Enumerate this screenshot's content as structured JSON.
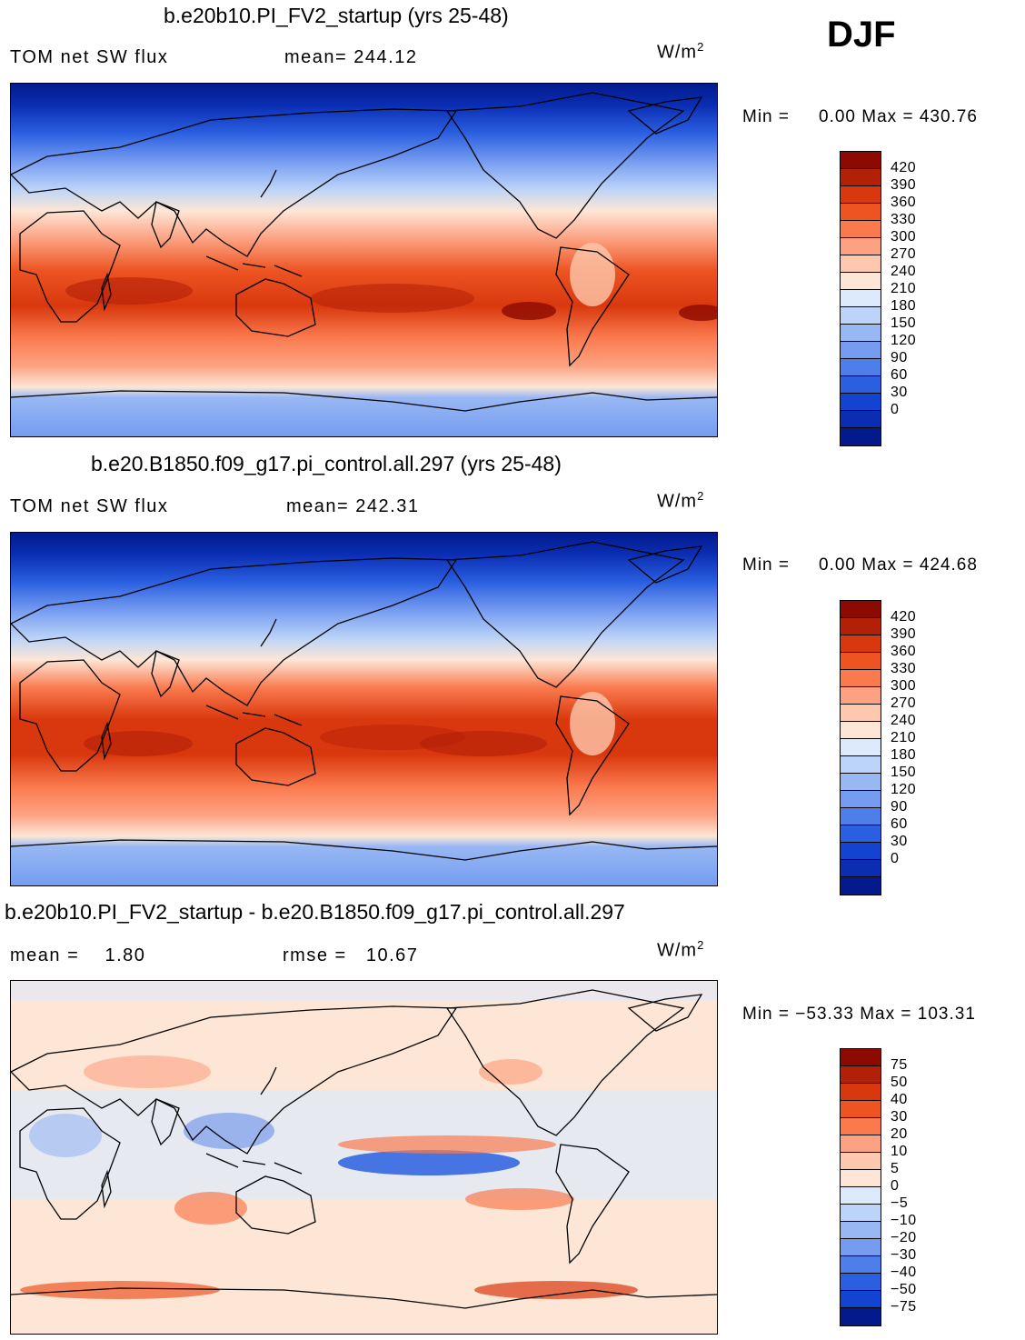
{
  "season_label": "DJF",
  "colorbar_colors": {
    "absolute": [
      "#8c0a00",
      "#b32008",
      "#d9380e",
      "#ed5422",
      "#fa7a4e",
      "#fca282",
      "#fdc8ad",
      "#fde6d6",
      "#ddeafb",
      "#bcd4f8",
      "#98b8f4",
      "#759cf0",
      "#4d7ee9",
      "#2a5fe0",
      "#1244d1",
      "#0a2db2",
      "#031a8c"
    ],
    "difference": [
      "#8c0a00",
      "#b32008",
      "#d9380e",
      "#ed5422",
      "#fa7a4e",
      "#fca282",
      "#fdc8ad",
      "#fde6d6",
      "#ddeafb",
      "#bcd4f8",
      "#98b8f4",
      "#759cf0",
      "#4d7ee9",
      "#2a5fe0",
      "#1244d1",
      "#031a8c"
    ]
  },
  "panels": [
    {
      "title": "b.e20b10.PI_FV2_startup (yrs 25-48)",
      "variable": "TOM net SW flux",
      "stat1": "mean= 244.12",
      "stat2": "",
      "units_base": "W/m",
      "units_exp": "2",
      "min_label": "Min =",
      "min_value": "0.00",
      "max_label": "Max =",
      "max_value": "430.76",
      "colorbar_levels": [
        "420",
        "390",
        "360",
        "330",
        "300",
        "270",
        "240",
        "210",
        "180",
        "150",
        "120",
        "90",
        "60",
        "30",
        "0"
      ]
    },
    {
      "title": "b.e20.B1850.f09_g17.pi_control.all.297 (yrs 25-48)",
      "variable": "TOM net SW flux",
      "stat1": "mean= 242.31",
      "stat2": "",
      "units_base": "W/m",
      "units_exp": "2",
      "min_label": "Min =",
      "min_value": "0.00",
      "max_label": "Max =",
      "max_value": "424.68",
      "colorbar_levels": [
        "420",
        "390",
        "360",
        "330",
        "300",
        "270",
        "240",
        "210",
        "180",
        "150",
        "120",
        "90",
        "60",
        "30",
        "0"
      ]
    },
    {
      "title": "b.e20b10.PI_FV2_startup - b.e20.B1850.f09_g17.pi_control.all.297",
      "variable": "",
      "stat1": "mean =    1.80",
      "stat2": "rmse =   10.67",
      "units_base": "W/m",
      "units_exp": "2",
      "min_label": "Min =",
      "min_value": "−53.33",
      "max_label": "Max =",
      "max_value": "103.31",
      "colorbar_levels": [
        "75",
        "50",
        "40",
        "30",
        "20",
        "10",
        "5",
        "0",
        "−5",
        "−10",
        "−20",
        "−30",
        "−40",
        "−50",
        "−75"
      ]
    }
  ]
}
